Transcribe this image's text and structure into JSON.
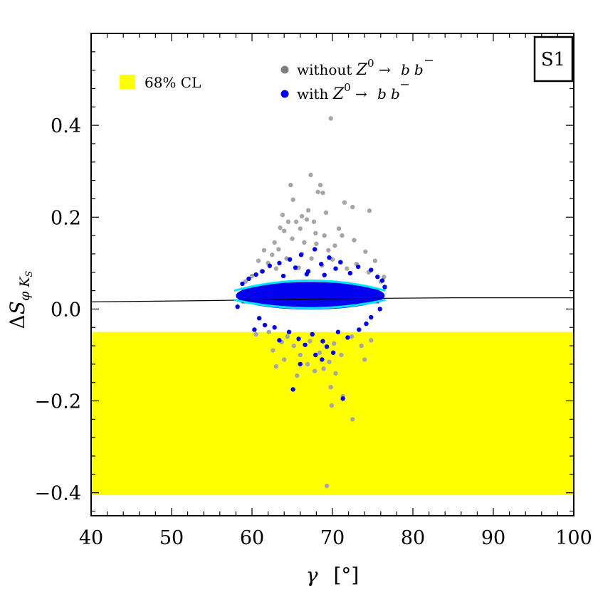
{
  "chart_data": {
    "type": "scatter",
    "x_axis": {
      "label": "γ",
      "unit": "[°]",
      "range": [
        40,
        100
      ],
      "ticks": [
        40,
        50,
        60,
        70,
        80,
        90,
        100
      ],
      "tick_labels": [
        "40",
        "50",
        "60",
        "70",
        "80",
        "90",
        "100"
      ]
    },
    "y_axis": {
      "label_main": "ΔS",
      "label_sub": "φ K",
      "label_subsub": "S",
      "range": [
        -0.45,
        0.6
      ],
      "ticks": [
        -0.4,
        -0.2,
        0.0,
        0.2,
        0.4
      ],
      "tick_labels": [
        "−0.4",
        "−0.2",
        "0.0",
        "0.2",
        "0.4"
      ]
    },
    "tag": "S1",
    "band": {
      "label": "68% CL",
      "y_range": [
        -0.405,
        -0.05
      ],
      "color": "#ffff00"
    },
    "series": [
      {
        "name": "without Z0 → b b̄",
        "legend_parts": [
          "without ",
          "Z",
          "0",
          " → ",
          "b",
          "b"
        ],
        "color": "#a6a6a6",
        "legend_color": "#808080",
        "points": [
          [
            69.8,
            0.415
          ],
          [
            67.3,
            0.292
          ],
          [
            64.8,
            0.27
          ],
          [
            68.5,
            0.27
          ],
          [
            68.2,
            0.255
          ],
          [
            68.8,
            0.253
          ],
          [
            65.1,
            0.238
          ],
          [
            71.5,
            0.232
          ],
          [
            72.5,
            0.222
          ],
          [
            74.6,
            0.214
          ],
          [
            63.8,
            0.205
          ],
          [
            66.2,
            0.202
          ],
          [
            67.0,
            0.215
          ],
          [
            66.8,
            0.195
          ],
          [
            65.5,
            0.19
          ],
          [
            69.2,
            0.21
          ],
          [
            64.5,
            0.19
          ],
          [
            67.7,
            0.19
          ],
          [
            63.5,
            0.177
          ],
          [
            66.0,
            0.175
          ],
          [
            70.8,
            0.175
          ],
          [
            64.0,
            0.17
          ],
          [
            67.9,
            0.165
          ],
          [
            69.0,
            0.16
          ],
          [
            71.2,
            0.16
          ],
          [
            65.0,
            0.153
          ],
          [
            62.8,
            0.145
          ],
          [
            66.5,
            0.145
          ],
          [
            68.0,
            0.142
          ],
          [
            72.7,
            0.15
          ],
          [
            70.3,
            0.138
          ],
          [
            63.3,
            0.13
          ],
          [
            61.5,
            0.128
          ],
          [
            69.5,
            0.128
          ],
          [
            74.1,
            0.125
          ],
          [
            66.2,
            0.12
          ],
          [
            62.5,
            0.118
          ],
          [
            64.3,
            0.11
          ],
          [
            67.4,
            0.11
          ],
          [
            70.0,
            0.108
          ],
          [
            75.3,
            0.105
          ],
          [
            60.8,
            0.105
          ],
          [
            62.0,
            0.1
          ],
          [
            73.0,
            0.098
          ],
          [
            68.7,
            0.095
          ],
          [
            65.8,
            0.09
          ],
          [
            63.0,
            0.088
          ],
          [
            71.8,
            0.088
          ],
          [
            61.2,
            0.082
          ],
          [
            74.5,
            0.08
          ],
          [
            76.4,
            0.07
          ],
          [
            60.0,
            0.072
          ],
          [
            59.2,
            0.06
          ],
          [
            76.0,
            0.06
          ],
          [
            62.1,
            -0.05
          ],
          [
            64.4,
            -0.06
          ],
          [
            60.5,
            -0.055
          ],
          [
            72.4,
            -0.06
          ],
          [
            67.2,
            -0.07
          ],
          [
            70.2,
            -0.075
          ],
          [
            65.2,
            -0.08
          ],
          [
            73.6,
            -0.08
          ],
          [
            62.6,
            -0.09
          ],
          [
            68.4,
            -0.095
          ],
          [
            71.1,
            -0.1
          ],
          [
            66.0,
            -0.1
          ],
          [
            64.0,
            -0.11
          ],
          [
            63.0,
            -0.125
          ],
          [
            69.6,
            -0.115
          ],
          [
            74.0,
            -0.11
          ],
          [
            67.8,
            -0.135
          ],
          [
            70.4,
            -0.14
          ],
          [
            65.6,
            -0.145
          ],
          [
            68.9,
            -0.13
          ],
          [
            69.8,
            -0.17
          ],
          [
            71.3,
            -0.19
          ],
          [
            69.9,
            -0.21
          ],
          [
            72.5,
            -0.24
          ],
          [
            69.3,
            -0.385
          ],
          [
            66.9,
            -0.12
          ],
          [
            63.7,
            -0.072
          ],
          [
            74.8,
            -0.068
          ]
        ]
      },
      {
        "name": "with Z0 → b b̄",
        "legend_parts": [
          "with ",
          "Z",
          "0",
          " → ",
          "b",
          "b"
        ],
        "color": "#0000ee",
        "legend_color": "#0000ee",
        "points": [
          [
            67.8,
            0.13
          ],
          [
            66.1,
            0.118
          ],
          [
            69.6,
            0.112
          ],
          [
            64.7,
            0.108
          ],
          [
            71.0,
            0.102
          ],
          [
            63.4,
            0.1
          ],
          [
            68.6,
            0.098
          ],
          [
            62.2,
            0.094
          ],
          [
            73.2,
            0.092
          ],
          [
            65.4,
            0.09
          ],
          [
            70.4,
            0.088
          ],
          [
            74.8,
            0.085
          ],
          [
            61.3,
            0.082
          ],
          [
            67.0,
            0.082
          ],
          [
            72.2,
            0.078
          ],
          [
            60.5,
            0.075
          ],
          [
            75.6,
            0.07
          ],
          [
            59.6,
            0.066
          ],
          [
            76.2,
            0.062
          ],
          [
            63.9,
            0.072
          ],
          [
            69.0,
            0.074
          ],
          [
            66.8,
            0.076
          ],
          [
            62.8,
            -0.04
          ],
          [
            60.3,
            -0.045
          ],
          [
            64.6,
            -0.05
          ],
          [
            67.5,
            -0.055
          ],
          [
            70.7,
            -0.05
          ],
          [
            73.3,
            -0.045
          ],
          [
            65.8,
            -0.065
          ],
          [
            68.8,
            -0.07
          ],
          [
            63.4,
            -0.068
          ],
          [
            71.9,
            -0.062
          ],
          [
            66.6,
            -0.078
          ],
          [
            69.3,
            -0.082
          ],
          [
            74.2,
            -0.032
          ],
          [
            61.6,
            -0.035
          ],
          [
            70.1,
            -0.095
          ],
          [
            67.9,
            -0.1
          ],
          [
            66.0,
            -0.12
          ],
          [
            68.7,
            -0.11
          ],
          [
            65.1,
            -0.175
          ],
          [
            71.3,
            -0.195
          ],
          [
            58.8,
            0.055
          ],
          [
            76.5,
            0.048
          ],
          [
            75.9,
            0.0
          ],
          [
            58.2,
            0.005
          ],
          [
            60.9,
            -0.02
          ],
          [
            74.8,
            -0.018
          ]
        ]
      }
    ],
    "envelope": {
      "color": "#00e5ff",
      "x_range": [
        57.8,
        76.6
      ],
      "upper": {
        "center": 0.062,
        "sag": 0.022
      },
      "lower": {
        "center": 0.002,
        "sag": -0.018
      }
    },
    "fit_line": {
      "color": "#000000",
      "points": [
        [
          40,
          0.0155
        ],
        [
          55,
          0.0185
        ],
        [
          70,
          0.0225
        ],
        [
          85,
          0.0245
        ],
        [
          100,
          0.0245
        ]
      ]
    },
    "core_cluster": {
      "color": "#0000ee",
      "x_range": [
        58.0,
        76.5
      ],
      "y_center": 0.029,
      "half_height": 0.03
    }
  }
}
